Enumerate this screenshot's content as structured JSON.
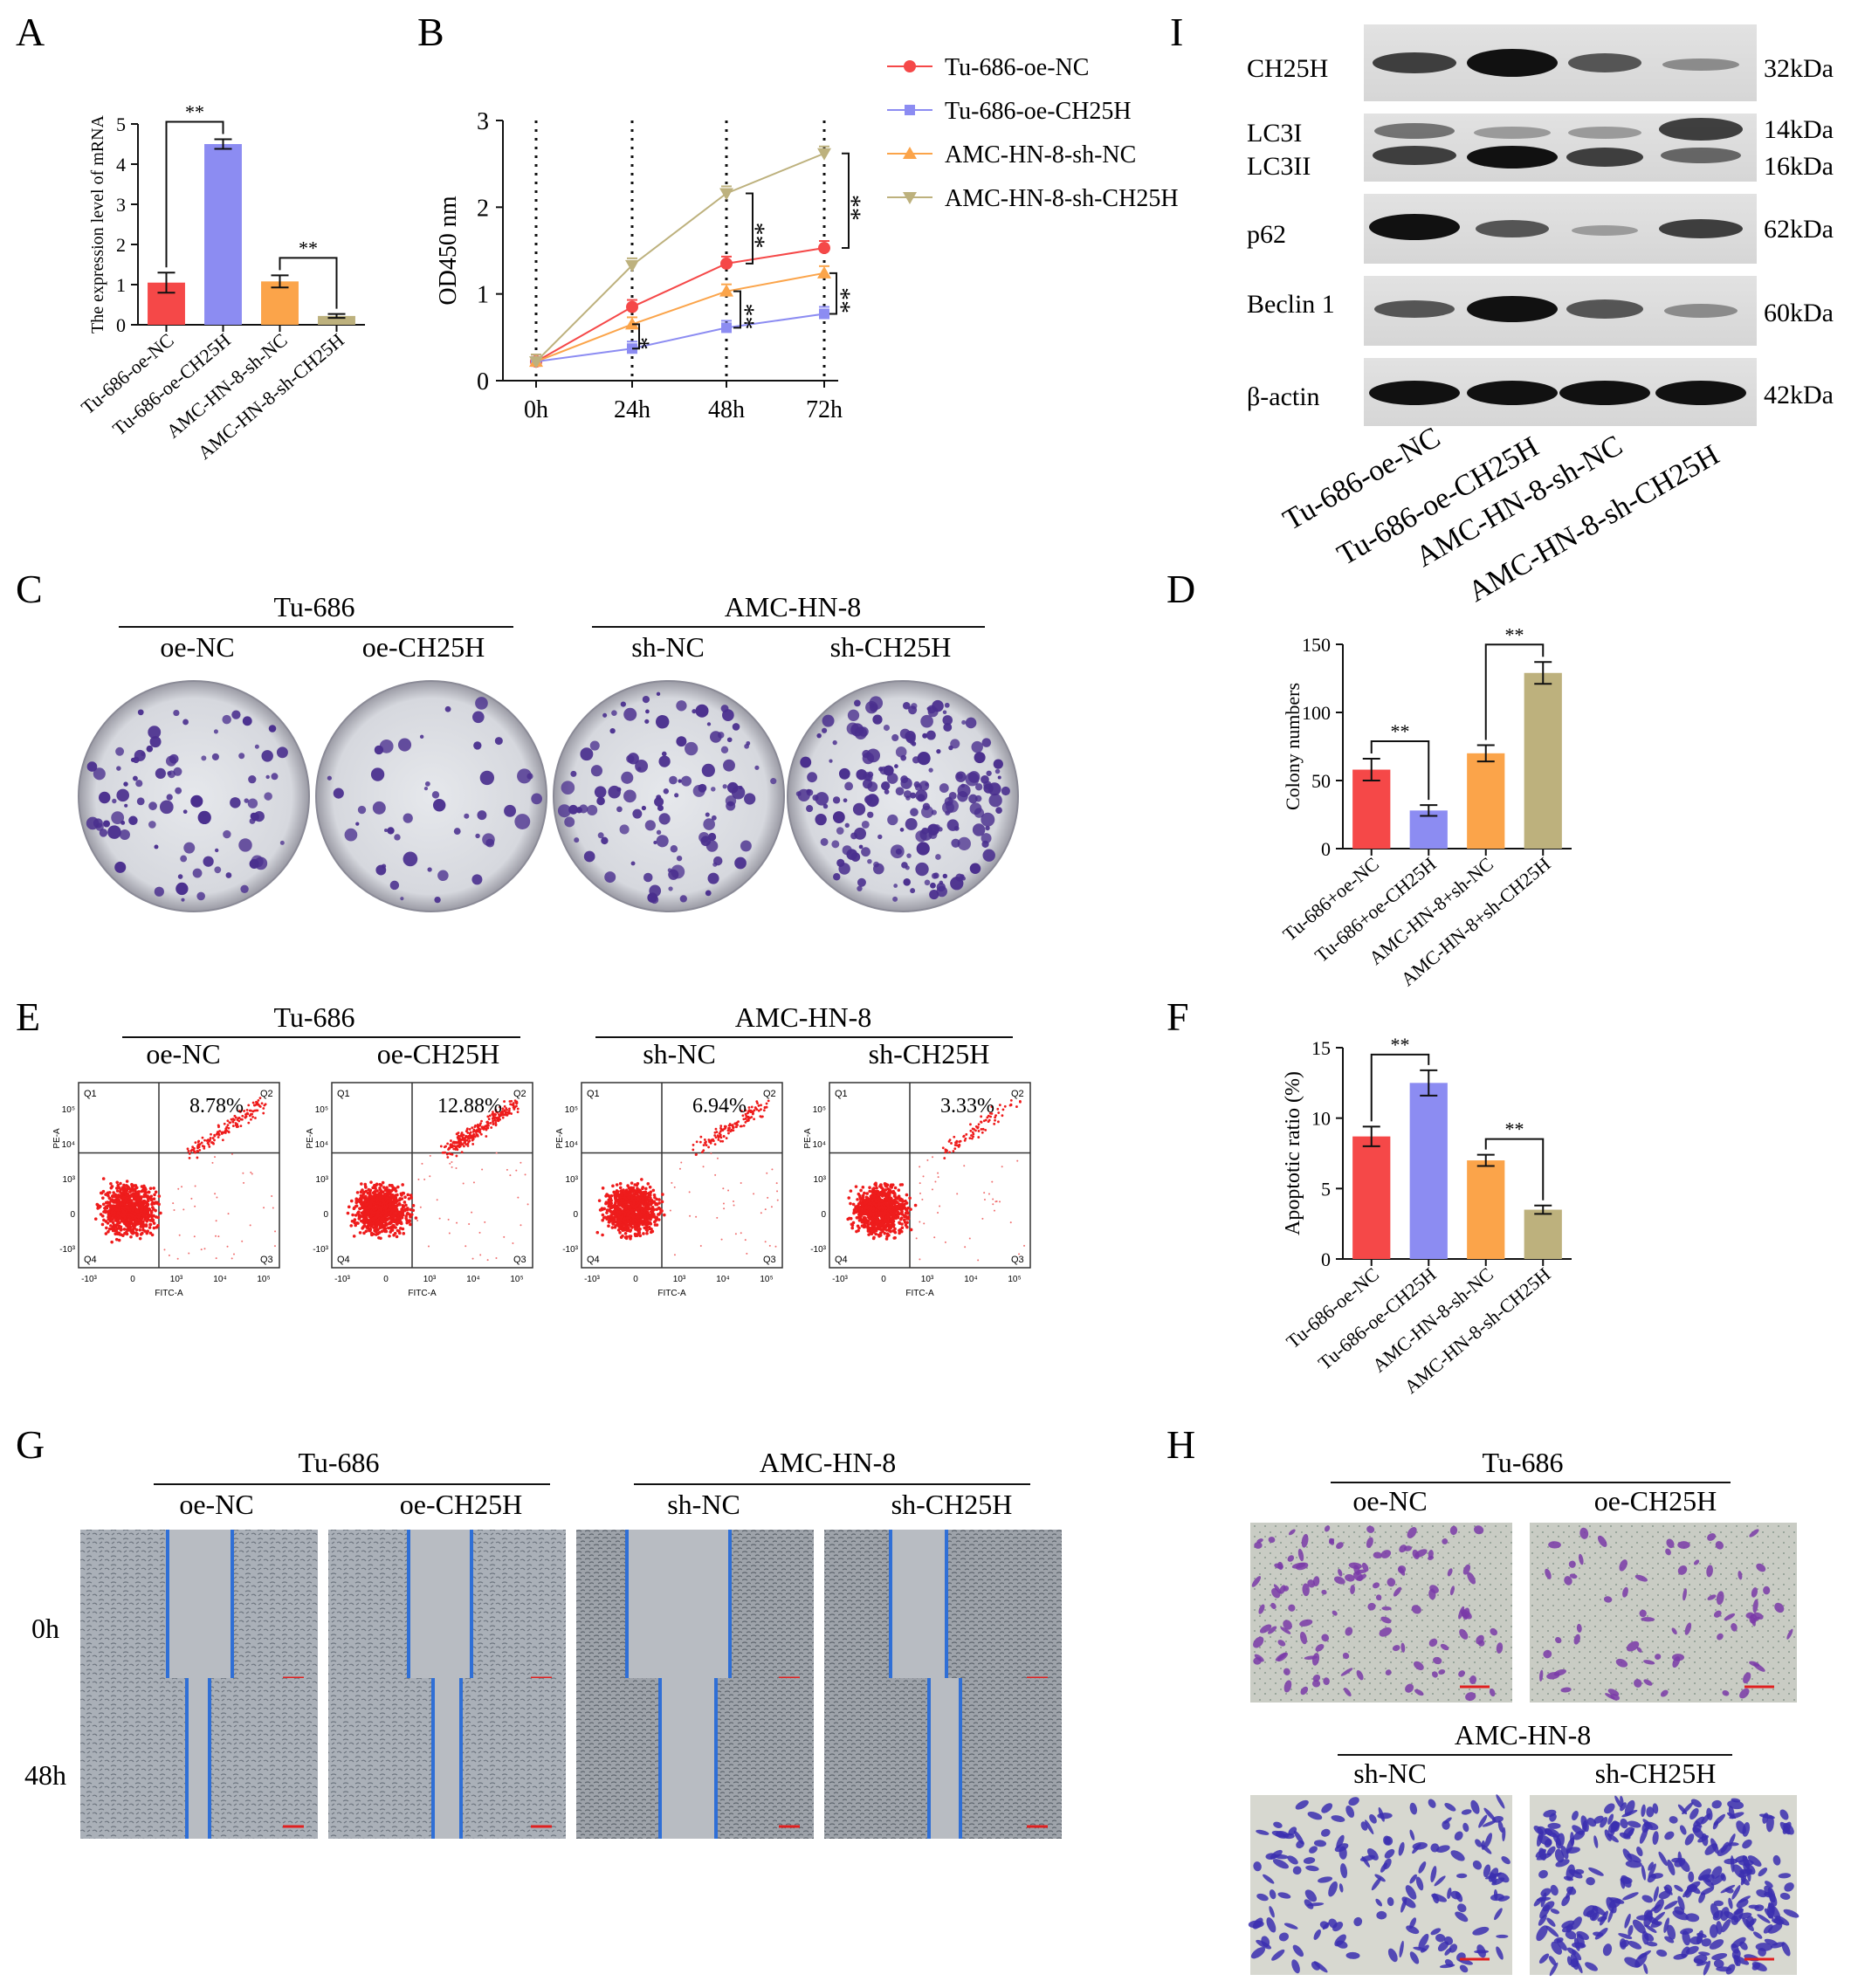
{
  "panels": {
    "A": {
      "label": "A"
    },
    "B": {
      "label": "B"
    },
    "C": {
      "label": "C",
      "groups": [
        "Tu-686",
        "AMC-HN-8"
      ],
      "conditions": [
        "oe-NC",
        "oe-CH25H",
        "sh-NC",
        "sh-CH25H"
      ]
    },
    "D": {
      "label": "D"
    },
    "E": {
      "label": "E",
      "groups": [
        "Tu-686",
        "AMC-HN-8"
      ],
      "conditions": [
        "oe-NC",
        "oe-CH25H",
        "sh-NC",
        "sh-CH25H"
      ],
      "percentages": [
        "8.78%",
        "12.88%",
        "6.94%",
        "3.33%"
      ],
      "quadrants": [
        "Q1",
        "Q2",
        "Q3",
        "Q4"
      ],
      "x_axis_label": "FITC-A",
      "y_axis_label": "PE-A",
      "x_ticks": [
        "-10³",
        "0",
        "10³",
        "10⁴",
        "10⁵"
      ],
      "y_ticks": [
        "10⁵",
        "10⁴",
        "10³",
        "0",
        "-10³"
      ]
    },
    "F": {
      "label": "F"
    },
    "G": {
      "label": "G",
      "groups": [
        "Tu-686",
        "AMC-HN-8"
      ],
      "conditions": [
        "oe-NC",
        "oe-CH25H",
        "sh-NC",
        "sh-CH25H"
      ],
      "row_labels": [
        "0h",
        "48h"
      ]
    },
    "H": {
      "label": "H",
      "groups": [
        "Tu-686",
        "AMC-HN-8"
      ],
      "conditions_top": [
        "oe-NC",
        "oe-CH25H"
      ],
      "conditions_bottom": [
        "sh-NC",
        "sh-CH25H"
      ]
    },
    "I": {
      "label": "I",
      "rows": [
        {
          "labels": [
            "CH25H"
          ],
          "sizes": [
            "32kDa"
          ]
        },
        {
          "labels": [
            "LC3I",
            "LC3II"
          ],
          "sizes": [
            "14kDa",
            "16kDa"
          ]
        },
        {
          "labels": [
            "p62"
          ],
          "sizes": [
            "62kDa"
          ]
        },
        {
          "labels": [
            "Beclin 1"
          ],
          "sizes": [
            "60kDa"
          ]
        },
        {
          "labels": [
            "β-actin"
          ],
          "sizes": [
            "42kDa"
          ]
        }
      ],
      "lanes": [
        "Tu-686-oe-NC",
        "Tu-686-oe-CH25H",
        "AMC-HN-8-sh-NC",
        "AMC-HN-8-sh-CH25H"
      ]
    }
  },
  "colors": {
    "red": "#f54848",
    "blue": "#8c8cf2",
    "orange": "#fba44a",
    "khaki": "#bdb17d",
    "stain": "#4a2f8e"
  },
  "chart_data": [
    {
      "panel": "A",
      "type": "bar",
      "categories": [
        "Tu-686-oe-NC",
        "Tu-686-oe-CH25H",
        "AMC-HN-8-sh-NC",
        "AMC-HN-8-sh-CH25H"
      ],
      "values": [
        1.05,
        4.5,
        1.08,
        0.22
      ],
      "errors": [
        0.25,
        0.12,
        0.15,
        0.05
      ],
      "ylabel": "The expression level of mRNA",
      "ylim": [
        0,
        5
      ],
      "yticks": [
        0,
        1,
        2,
        3,
        4,
        5
      ],
      "significance": [
        {
          "between": [
            0,
            1
          ],
          "text": "**"
        },
        {
          "between": [
            2,
            3
          ],
          "text": "**"
        }
      ]
    },
    {
      "panel": "B",
      "type": "line",
      "x": [
        "0h",
        "24h",
        "48h",
        "72h"
      ],
      "series": [
        {
          "name": "Tu-686-oe-NC",
          "values": [
            0.22,
            0.85,
            1.35,
            1.53
          ]
        },
        {
          "name": "Tu-686-oe-CH25H",
          "values": [
            0.22,
            0.37,
            0.61,
            0.77
          ]
        },
        {
          "name": "AMC-HN-8-sh-NC",
          "values": [
            0.22,
            0.65,
            1.03,
            1.24
          ]
        },
        {
          "name": "AMC-HN-8-sh-CH25H",
          "values": [
            0.22,
            1.33,
            2.16,
            2.62
          ]
        }
      ],
      "ylabel": "OD450 nm",
      "ylim": [
        0,
        3
      ],
      "yticks": [
        0,
        1,
        2,
        3
      ],
      "significance": [
        "*",
        "**",
        "**",
        "**",
        "**"
      ]
    },
    {
      "panel": "D",
      "type": "bar",
      "categories": [
        "Tu-686+oe-NC",
        "Tu-686+oe-CH25H",
        "AMC-HN-8+sh-NC",
        "AMC-HN-8+sh-CH25H"
      ],
      "values": [
        58,
        28,
        70,
        129
      ],
      "errors": [
        8,
        4,
        6,
        8
      ],
      "ylabel": "Colony numbers",
      "ylim": [
        0,
        150
      ],
      "yticks": [
        0,
        50,
        100,
        150
      ],
      "significance": [
        {
          "between": [
            0,
            1
          ],
          "text": "**"
        },
        {
          "between": [
            2,
            3
          ],
          "text": "**"
        }
      ]
    },
    {
      "panel": "F",
      "type": "bar",
      "categories": [
        "Tu-686-oe-NC",
        "Tu-686-oe-CH25H",
        "AMC-HN-8-sh-NC",
        "AMC-HN-8-sh-CH25H"
      ],
      "values": [
        8.7,
        12.5,
        7.0,
        3.5
      ],
      "errors": [
        0.7,
        0.9,
        0.4,
        0.3
      ],
      "ylabel": "Apoptotic ratio (%)",
      "ylim": [
        0,
        15
      ],
      "yticks": [
        0,
        5,
        10,
        15
      ],
      "significance": [
        {
          "between": [
            0,
            1
          ],
          "text": "**"
        },
        {
          "between": [
            2,
            3
          ],
          "text": "**"
        }
      ]
    }
  ]
}
